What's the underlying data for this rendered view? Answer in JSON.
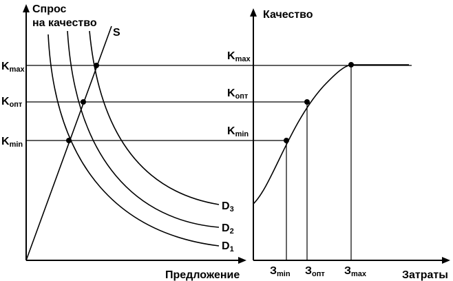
{
  "left_panel": {
    "y_axis_label_line1": "Спрос",
    "y_axis_label_line2": "на качество",
    "x_axis_label": "Предложение",
    "supply_label": "S",
    "levels": [
      {
        "main": "K",
        "sub": "max"
      },
      {
        "main": "K",
        "sub": "опт"
      },
      {
        "main": "K",
        "sub": "min"
      }
    ],
    "demand_curves": [
      {
        "main": "D",
        "sub": "3"
      },
      {
        "main": "D",
        "sub": "2"
      },
      {
        "main": "D",
        "sub": "1"
      }
    ]
  },
  "right_panel": {
    "y_axis_label": "Качество",
    "x_axis_label": "Затраты",
    "levels": [
      {
        "main": "K",
        "sub": "max"
      },
      {
        "main": "K",
        "sub": "опт"
      },
      {
        "main": "K",
        "sub": "min"
      }
    ],
    "costs": [
      {
        "main": "З",
        "sub": "min"
      },
      {
        "main": "З",
        "sub": "опт"
      },
      {
        "main": "З",
        "sub": "max"
      }
    ]
  }
}
